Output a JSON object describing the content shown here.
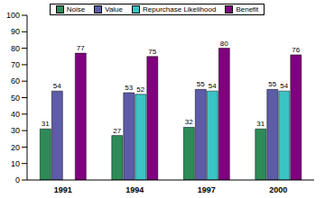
{
  "chart_data": {
    "type": "bar",
    "categories": [
      "1991",
      "1994",
      "1997",
      "2000"
    ],
    "series": [
      {
        "name": "Noise",
        "color": "#2e8b57",
        "values": [
          31,
          27,
          32,
          31
        ]
      },
      {
        "name": "Value",
        "color": "#5c5ca8",
        "values": [
          54,
          53,
          55,
          55
        ]
      },
      {
        "name": "Repurchase Likelihood",
        "color": "#3cc3c3",
        "values": [
          null,
          52,
          54,
          54
        ]
      },
      {
        "name": "Benefit",
        "color": "#800080",
        "values": [
          77,
          75,
          80,
          76
        ]
      }
    ],
    "ylim": [
      0,
      100
    ],
    "yticks": [
      0,
      10,
      20,
      30,
      40,
      50,
      60,
      70,
      80,
      90,
      100
    ],
    "grid": false,
    "legend": "top",
    "data_labels": true
  }
}
